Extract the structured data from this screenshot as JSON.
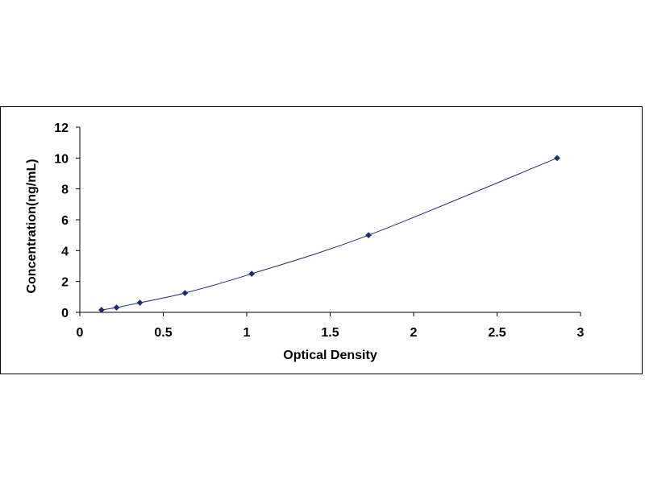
{
  "chart_data": {
    "type": "scatter",
    "title": "",
    "xlabel": "Optical Density",
    "ylabel": "Concentration(ng/mL)",
    "xlim": [
      0,
      3
    ],
    "ylim": [
      0,
      12
    ],
    "x_ticks": [
      "0",
      "0.5",
      "1",
      "1.5",
      "2",
      "2.5",
      "3"
    ],
    "y_ticks": [
      "0",
      "2",
      "4",
      "6",
      "8",
      "10",
      "12"
    ],
    "grid": false,
    "legend": "none",
    "trendline": true,
    "series": [
      {
        "x": [
          0.13,
          0.22,
          0.36,
          0.63,
          1.03,
          1.73,
          2.86
        ],
        "y": [
          0.156,
          0.312,
          0.625,
          1.25,
          2.5,
          5,
          10
        ]
      }
    ],
    "colors": {
      "marker": "#1f2a6b",
      "line": "#1f2a6b",
      "axis": "#000000"
    }
  }
}
